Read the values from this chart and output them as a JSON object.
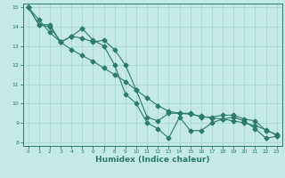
{
  "xlabel": "Humidex (Indice chaleur)",
  "bg_color": "#c5eae6",
  "grid_color": "#a8d8d4",
  "line_color": "#2a7a6e",
  "xlim": [
    -0.5,
    23.5
  ],
  "ylim": [
    7.8,
    15.2
  ],
  "yticks": [
    8,
    9,
    10,
    11,
    12,
    13,
    14,
    15
  ],
  "xticks": [
    0,
    1,
    2,
    3,
    4,
    5,
    6,
    7,
    8,
    9,
    10,
    11,
    12,
    13,
    14,
    15,
    16,
    17,
    18,
    19,
    20,
    21,
    22,
    23
  ],
  "line1_x": [
    0,
    1,
    2,
    3,
    4,
    5,
    6,
    7,
    8,
    9,
    10,
    11,
    12,
    13,
    14,
    15,
    16,
    17,
    18,
    19,
    20,
    21,
    22,
    23
  ],
  "line1_y": [
    15.0,
    14.1,
    14.1,
    13.2,
    13.5,
    13.9,
    13.3,
    13.0,
    12.0,
    10.5,
    10.0,
    9.0,
    8.7,
    8.2,
    9.3,
    8.6,
    8.6,
    9.0,
    9.2,
    9.3,
    9.1,
    8.7,
    8.2,
    8.3
  ],
  "line2_x": [
    0,
    1,
    2,
    3,
    4,
    5,
    6,
    7,
    8,
    9,
    10,
    11,
    12,
    13,
    14,
    15,
    16,
    17,
    18,
    19,
    20,
    21,
    22,
    23
  ],
  "line2_y": [
    15.0,
    14.1,
    14.0,
    13.2,
    13.5,
    13.4,
    13.2,
    13.3,
    12.8,
    12.0,
    10.7,
    9.3,
    9.1,
    9.5,
    9.5,
    9.5,
    9.3,
    9.3,
    9.4,
    9.4,
    9.2,
    9.1,
    8.6,
    8.4
  ],
  "line3_x": [
    0,
    1,
    2,
    3,
    4,
    5,
    6,
    7,
    8,
    9,
    10,
    11,
    12,
    13,
    14,
    15,
    16,
    17,
    18,
    19,
    20,
    21,
    22,
    23
  ],
  "line3_y": [
    15.0,
    14.35,
    13.7,
    13.2,
    12.8,
    12.5,
    12.2,
    11.85,
    11.5,
    11.15,
    10.7,
    10.3,
    9.9,
    9.6,
    9.5,
    9.45,
    9.35,
    9.25,
    9.2,
    9.1,
    9.0,
    8.85,
    8.65,
    8.35
  ]
}
